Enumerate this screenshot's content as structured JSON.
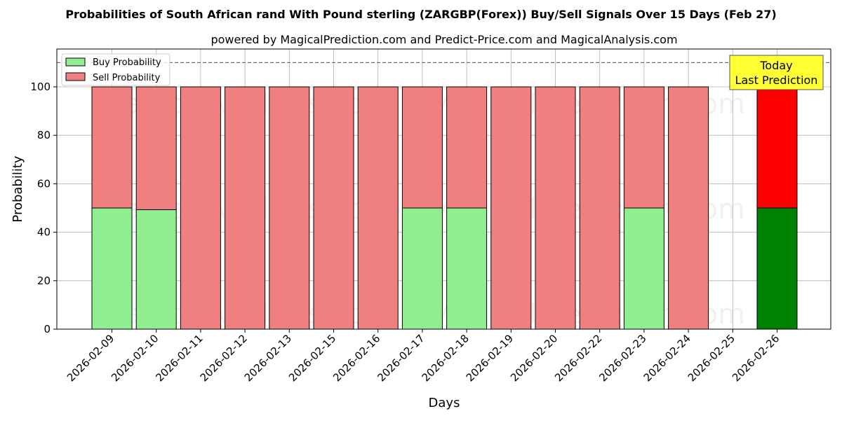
{
  "chart_data": {
    "type": "bar",
    "stacked": true,
    "title": "Probabilities of South African rand With Pound sterling (ZARGBP(Forex)) Buy/Sell Signals Over 15 Days (Feb 27)",
    "subtitle": "powered by MagicalPrediction.com and Predict-Price.com and MagicalAnalysis.com",
    "xlabel": "Days",
    "ylabel": "Probability",
    "ylim": [
      0,
      115
    ],
    "yticks": [
      0,
      20,
      40,
      60,
      80,
      100
    ],
    "reference_line": 110,
    "grid": true,
    "legend_position": "top-left",
    "categories": [
      "2026-02-09",
      "2026-02-10",
      "2026-02-11",
      "2026-02-12",
      "2026-02-13",
      "2026-02-15",
      "2026-02-16",
      "2026-02-17",
      "2026-02-18",
      "2026-02-19",
      "2026-02-20",
      "2026-02-22",
      "2026-02-23",
      "2026-02-24",
      "2026-02-25",
      "2026-02-26"
    ],
    "series": [
      {
        "name": "Buy Probability",
        "values": [
          50,
          49.3,
          0,
          0,
          0,
          0,
          0,
          50,
          50,
          0,
          0,
          0,
          50,
          0,
          null,
          50
        ]
      },
      {
        "name": "Sell Probability",
        "values": [
          50,
          50.7,
          100,
          100,
          100,
          100,
          100,
          50,
          50,
          100,
          100,
          100,
          50,
          100,
          null,
          50
        ]
      }
    ],
    "colors": {
      "buy": "#90ee90",
      "sell": "#f08080",
      "buy_today": "#008000",
      "sell_today": "#ff0000",
      "annotation_bg": "#ffff33"
    },
    "today_index": 15,
    "annotation": "Today\nLast Prediction",
    "watermark": "MagicalAnalysis.com    MagicalPrediction.com"
  }
}
